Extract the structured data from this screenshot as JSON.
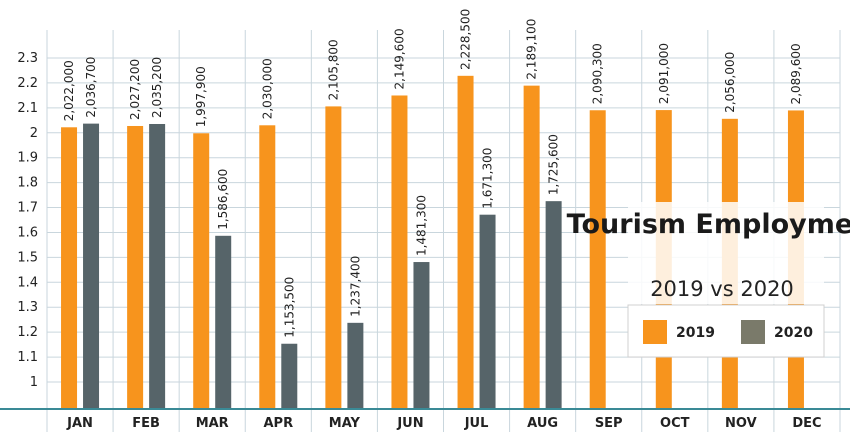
{
  "chart_data": {
    "type": "bar",
    "title": "Tourism Employment",
    "subtitle": "2019 vs 2020",
    "categories": [
      "JAN",
      "FEB",
      "MAR",
      "APR",
      "MAY",
      "JUN",
      "JUL",
      "AUG",
      "SEP",
      "OCT",
      "NOV",
      "DEC"
    ],
    "series": [
      {
        "name": "2019",
        "color": "#f7941d",
        "values": [
          2022000,
          2027200,
          1997900,
          2030000,
          2105800,
          2149600,
          2228500,
          2189100,
          2090300,
          2091000,
          2056000,
          2089600
        ],
        "labels": [
          "2,022,000",
          "2,027,200",
          "1,997,900",
          "2,030,000",
          "2,105,800",
          "2,149,600",
          "2,228,500",
          "2,189,100",
          "2,090,300",
          "2,091,000",
          "2,056,000",
          "2,089,600"
        ]
      },
      {
        "name": "2020",
        "color": "#566469",
        "values": [
          2036700,
          2035200,
          1586600,
          1153500,
          1237400,
          1481300,
          1671300,
          1725600,
          null,
          null,
          null,
          null
        ],
        "labels": [
          "2,036,700",
          "2,035,200",
          "1,586,600",
          "1,153,500",
          "1,237,400",
          "1,481,300",
          "1,671,300",
          "1,725,600",
          "",
          "",
          "",
          ""
        ]
      }
    ],
    "y_ticks": [
      "1",
      "1.1",
      "1.2",
      "1.3",
      "1.4",
      "1.5",
      "1.6",
      "1.7",
      "1.8",
      "1.9",
      "2",
      "2.1",
      "2.2",
      "2.3"
    ],
    "ylim": [
      0.9,
      2.35
    ],
    "ylabel": "",
    "xlabel": "",
    "grid": true,
    "legend_position": "bottom-right",
    "colors": {
      "grid": "#c9d6dd",
      "axis": "#3a8a96",
      "legend_box_2020": "#7a7a6a"
    }
  }
}
